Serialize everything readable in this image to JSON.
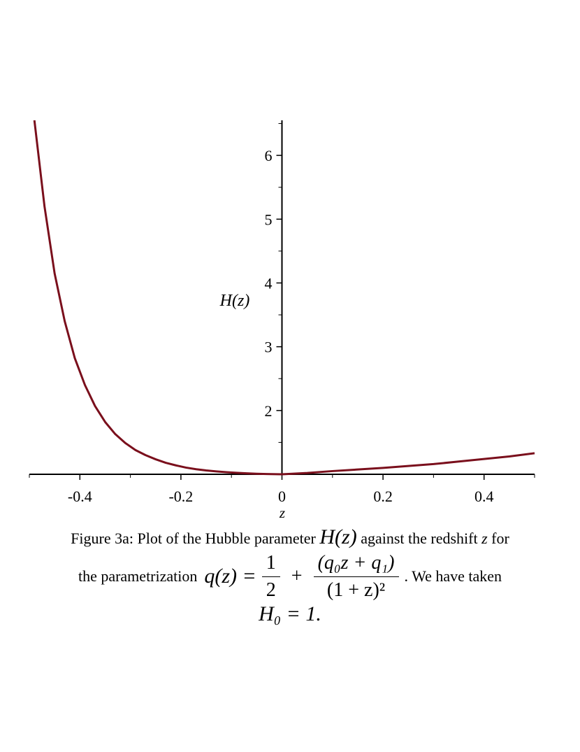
{
  "chart_data": {
    "type": "line",
    "title": "",
    "xlabel": "z",
    "ylabel": "H(z)",
    "xlim": [
      -0.5,
      0.5
    ],
    "ylim": [
      1,
      6.55
    ],
    "x_axis_crosses_y_at": 1,
    "y_axis_crosses_x_at": 0,
    "grid": false,
    "legend": "none",
    "x_ticks": [
      -0.4,
      -0.2,
      0,
      0.2,
      0.4
    ],
    "x_tick_labels": [
      "-0.4",
      "-0.2",
      "0",
      "0.2",
      "0.4"
    ],
    "y_ticks": [
      2,
      3,
      4,
      5,
      6
    ],
    "y_tick_labels": [
      "2",
      "3",
      "4",
      "5",
      "6"
    ],
    "line_color": "#7a0f1c",
    "series": [
      {
        "x": [
          -0.49,
          -0.47,
          -0.45,
          -0.43,
          -0.41,
          -0.39,
          -0.37,
          -0.35,
          -0.33,
          -0.31,
          -0.29,
          -0.27,
          -0.25,
          -0.23,
          -0.21,
          -0.19,
          -0.17,
          -0.15,
          -0.13,
          -0.11,
          -0.09,
          -0.07,
          -0.05,
          -0.03,
          -0.01,
          0.0,
          0.05,
          0.1,
          0.15,
          0.2,
          0.25,
          0.3,
          0.35,
          0.4,
          0.45,
          0.5
        ],
        "y": [
          6.55,
          5.2,
          4.15,
          3.4,
          2.82,
          2.4,
          2.07,
          1.82,
          1.63,
          1.49,
          1.38,
          1.3,
          1.235,
          1.18,
          1.14,
          1.105,
          1.08,
          1.06,
          1.045,
          1.033,
          1.023,
          1.015,
          1.008,
          1.004,
          1.001,
          1.0,
          1.02,
          1.05,
          1.075,
          1.1,
          1.13,
          1.16,
          1.2,
          1.24,
          1.28,
          1.33
        ]
      }
    ]
  },
  "caption": {
    "prefix": "Figure 3a: Plot of the Hubble parameter",
    "hz": "H(z)",
    "middle": "against the redshift",
    "z": "z",
    "suffix": "for",
    "line2_start": "the parametrization",
    "q_lhs": "q(z) =",
    "frac1_num": "1",
    "frac1_den": "2",
    "plus": "+",
    "frac2_num": "(q₀z + q₁)",
    "frac2_den": "(1 + z)²",
    "line2_end": ". We have taken",
    "h0": "H₀ = 1."
  }
}
